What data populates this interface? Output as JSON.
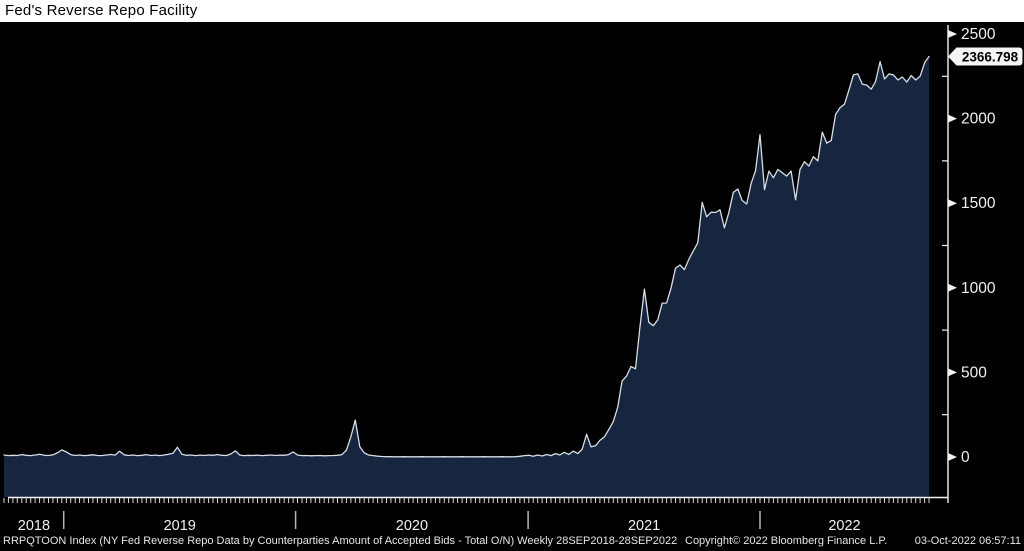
{
  "title": "Fed's Reverse Repo Facility",
  "chart_data": {
    "type": "area",
    "title": "Fed's Reverse Repo Facility",
    "series_name": "RRPQTOON Index",
    "series_description": "NY Fed Reverse Repo Data by Counterparties Amount of Accepted Bids - Total O/N",
    "frequency": "Weekly",
    "date_range": "28SEP2018-28SEP2022",
    "x_start_date": "2018-09-28",
    "x_end_date": "2022-09-28",
    "x_unit": "week",
    "n_points": 209,
    "values": [
      12,
      8,
      10,
      9,
      14,
      10,
      8,
      12,
      16,
      10,
      9,
      13,
      24,
      42,
      30,
      14,
      9,
      12,
      8,
      10,
      13,
      9,
      8,
      12,
      15,
      11,
      34,
      13,
      9,
      12,
      8,
      10,
      14,
      9,
      11,
      8,
      12,
      16,
      22,
      58,
      16,
      10,
      12,
      8,
      11,
      9,
      12,
      10,
      14,
      10,
      9,
      18,
      36,
      12,
      8,
      10,
      9,
      11,
      8,
      10,
      12,
      9,
      11,
      10,
      14,
      30,
      12,
      8,
      9,
      7,
      8,
      9,
      7,
      8,
      9,
      10,
      14,
      40,
      120,
      218,
      60,
      25,
      12,
      8,
      5,
      3,
      2,
      2,
      1,
      1,
      2,
      1,
      1,
      1,
      2,
      1,
      1,
      1,
      1,
      2,
      1,
      1,
      1,
      2,
      1,
      1,
      1,
      1,
      2,
      1,
      1,
      1,
      2,
      1,
      1,
      2,
      4,
      8,
      10,
      5,
      12,
      6,
      15,
      8,
      20,
      12,
      28,
      15,
      35,
      20,
      45,
      134,
      60,
      66,
      98,
      119,
      162,
      209,
      294,
      450,
      479,
      535,
      521,
      766,
      992,
      796,
      776,
      810,
      909,
      910,
      1000,
      1116,
      1135,
      1107,
      1169,
      1218,
      1266,
      1505,
      1420,
      1447,
      1445,
      1461,
      1354,
      1446,
      1564,
      1584,
      1516,
      1495,
      1616,
      1694,
      1905,
      1580,
      1690,
      1650,
      1700,
      1680,
      1660,
      1690,
      1520,
      1700,
      1745,
      1720,
      1775,
      1750,
      1920,
      1855,
      1870,
      2025,
      2065,
      2085,
      2170,
      2258,
      2264,
      2204,
      2198,
      2174,
      2220,
      2337,
      2234,
      2264,
      2258,
      2228,
      2246,
      2216,
      2255,
      2228,
      2250,
      2330,
      2366.798
    ],
    "last_value": 2366.798,
    "last_value_label": "2366.798",
    "y_major_ticks": [
      0,
      500,
      1000,
      1500,
      2000,
      2500
    ],
    "y_minor_ticks": [
      250,
      750,
      1250,
      1750,
      2250
    ],
    "ylim": [
      -240,
      2560
    ],
    "x_year_labels": [
      "2018",
      "2019",
      "2020",
      "2021",
      "2022"
    ],
    "x_year_boundaries_weeks": [
      13.43,
      65.57,
      117.86,
      170.0
    ],
    "grid": false,
    "legend": "none",
    "colors": {
      "background": "#000000",
      "area_fill": "#16263f",
      "line": "#d6dde7",
      "axis": "#f2f2f2",
      "label_text": "#f2f2f2",
      "tag_bg": "#f5f5f5",
      "tag_text": "#000000",
      "title_bg": "#ffffff",
      "title_text": "#000000"
    }
  },
  "footer": {
    "left": "RRPQTOON Index (NY Fed Reverse Repo Data by Counterparties Amount of Accepted Bids - Total O/N)  Weekly 28SEP2018-28SEP2022",
    "copyright": "Copyright© 2022 Bloomberg Finance L.P.",
    "timestamp": "03-Oct-2022 06:57:11"
  }
}
